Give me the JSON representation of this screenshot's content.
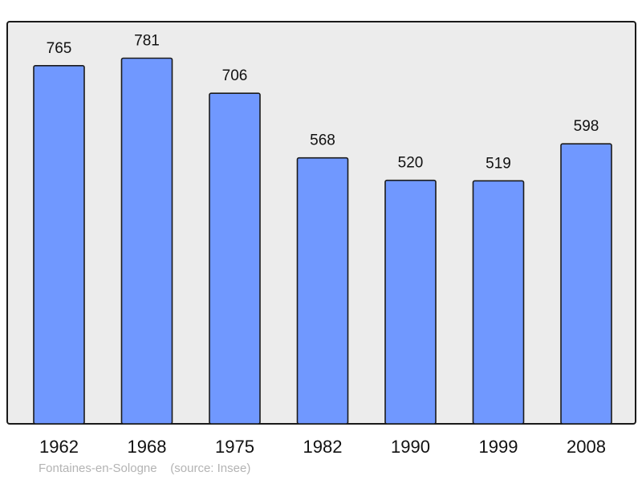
{
  "chart_data": {
    "type": "bar",
    "categories": [
      "1962",
      "1968",
      "1975",
      "1982",
      "1990",
      "1999",
      "2008"
    ],
    "values": [
      765,
      781,
      706,
      568,
      520,
      519,
      598
    ],
    "data_labels": [
      "765",
      "781",
      "706",
      "568",
      "520",
      "519",
      "598"
    ],
    "title": "",
    "xlabel": "",
    "ylabel": "",
    "ylim": [
      0,
      859
    ],
    "grid": false,
    "bar_color": "#7098ff",
    "plot_background": "#ececec"
  },
  "footer": {
    "place": "Fontaines-en-Sologne",
    "source": "(source: Insee)"
  }
}
